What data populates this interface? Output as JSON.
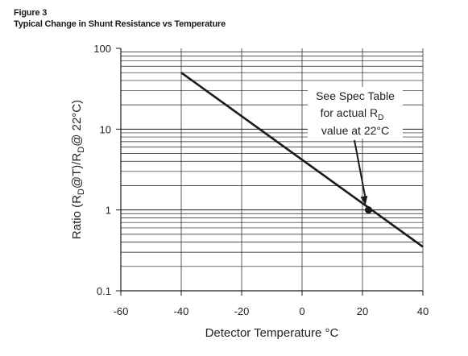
{
  "figure": {
    "label": "Figure 3",
    "title": "Typical Change in Shunt Resistance vs Temperature"
  },
  "chart_data": {
    "type": "line",
    "title": "Typical Change in Shunt Resistance vs Temperature",
    "xlabel": "Detector Temperature °C",
    "ylabel_parts": [
      "Ratio (R",
      "D",
      "@T)/R",
      "D",
      "@ 22°C)"
    ],
    "x_scale": "linear",
    "y_scale": "log",
    "xlim": [
      -60,
      40
    ],
    "ylim": [
      0.1,
      100
    ],
    "x_ticks": [
      -60,
      -40,
      -20,
      0,
      20,
      40
    ],
    "x_tick_labels": [
      "-60",
      "-40",
      "-20",
      "0",
      "20",
      "40"
    ],
    "y_ticks": [
      0.1,
      1,
      10,
      100
    ],
    "y_tick_labels": [
      "0.1",
      "1",
      "10",
      "100"
    ],
    "grid": true,
    "series": [
      {
        "x": [
          -40,
          40
        ],
        "y": [
          50,
          0.35
        ],
        "color": "#1a1a1a"
      }
    ],
    "marker": {
      "x": 22,
      "y": 1
    },
    "annotation": {
      "lines": [
        "See Spec Table",
        "for actual R",
        "D",
        "value at 22°C"
      ],
      "arrow_to": {
        "x": 21,
        "y": 1.05
      }
    }
  }
}
